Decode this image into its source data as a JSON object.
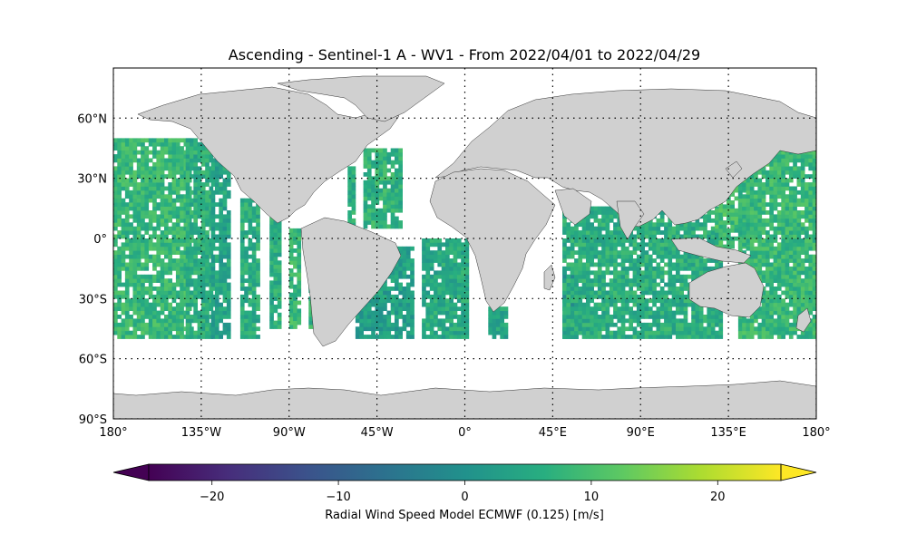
{
  "title": "Ascending - Sentinel-1 A - WV1 - From 2022/04/01 to 2022/04/29",
  "map": {
    "projection": "equirectangular",
    "lon_range": [
      -180,
      180
    ],
    "lat_range": [
      -90,
      85
    ],
    "gridlines": "dotted",
    "land_color": "#d0d0d0",
    "ocean_color": "#ffffff",
    "lon_ticks": [
      {
        "value": -180,
        "label": "180°"
      },
      {
        "value": -135,
        "label": "135°W"
      },
      {
        "value": -90,
        "label": "90°W"
      },
      {
        "value": -45,
        "label": "45°W"
      },
      {
        "value": 0,
        "label": "0°"
      },
      {
        "value": 45,
        "label": "45°E"
      },
      {
        "value": 90,
        "label": "90°E"
      },
      {
        "value": 135,
        "label": "135°E"
      },
      {
        "value": 180,
        "label": "180°"
      }
    ],
    "lat_ticks": [
      {
        "value": 60,
        "label": "60°N"
      },
      {
        "value": 30,
        "label": "30°N"
      },
      {
        "value": 0,
        "label": "0°"
      },
      {
        "value": -30,
        "label": "30°S"
      },
      {
        "value": -60,
        "label": "60°S"
      },
      {
        "value": -90,
        "label": "90°S"
      }
    ]
  },
  "chart_data": {
    "type": "heatmap",
    "title": "Ascending - Sentinel-1 A - WV1 - From 2022/04/01 to 2022/04/29",
    "variable": "Radial Wind Speed Model ECMWF (0.125) [m/s]",
    "colormap": "viridis",
    "extend": "both",
    "vmin": -25,
    "vmax": 25,
    "data_lat_range": [
      -50,
      50
    ],
    "cell_size_deg": [
      2,
      2
    ],
    "typical_value_range": [
      -2,
      14
    ],
    "swaths": [
      {
        "lon": [
          -180,
          -140
        ],
        "lat": [
          -50,
          50
        ],
        "value": 8
      },
      {
        "lon": [
          -143,
          -130
        ],
        "lat": [
          -50,
          50
        ],
        "value": 6
      },
      {
        "lon": [
          -130,
          -120
        ],
        "lat": [
          -50,
          45
        ],
        "value": 4
      },
      {
        "lon": [
          -115,
          -106
        ],
        "lat": [
          -50,
          20
        ],
        "value": 6
      },
      {
        "lon": [
          -100,
          -94
        ],
        "lat": [
          -45,
          10
        ],
        "value": 6
      },
      {
        "lon": [
          -90,
          -85
        ],
        "lat": [
          -45,
          5
        ],
        "value": 8
      },
      {
        "lon": [
          -80,
          -76
        ],
        "lat": [
          -45,
          0
        ],
        "value": 7
      },
      {
        "lon": [
          -60,
          -56
        ],
        "lat": [
          0,
          35
        ],
        "value": 6
      },
      {
        "lon": [
          -52,
          -32
        ],
        "lat": [
          5,
          45
        ],
        "value": 7
      },
      {
        "lon": [
          -56,
          -26
        ],
        "lat": [
          -50,
          -5
        ],
        "value": 3
      },
      {
        "lon": [
          -22,
          2
        ],
        "lat": [
          -50,
          0
        ],
        "value": 5
      },
      {
        "lon": [
          12,
          22
        ],
        "lat": [
          -50,
          -35
        ],
        "value": 4
      },
      {
        "lon": [
          50,
          58
        ],
        "lat": [
          -50,
          -15
        ],
        "value": 2
      },
      {
        "lon": [
          50,
          132
        ],
        "lat": [
          -50,
          15
        ],
        "value": 6
      },
      {
        "lon": [
          128,
          145
        ],
        "lat": [
          -5,
          30
        ],
        "value": 9
      },
      {
        "lon": [
          140,
          180
        ],
        "lat": [
          -50,
          50
        ],
        "value": 8
      }
    ]
  },
  "colorbar": {
    "label": "Radial Wind Speed Model ECMWF (0.125) [m/s]",
    "ticks": [
      {
        "value": -20,
        "label": "−20"
      },
      {
        "value": -10,
        "label": "−10"
      },
      {
        "value": 0,
        "label": "0"
      },
      {
        "value": 10,
        "label": "10"
      },
      {
        "value": 20,
        "label": "20"
      }
    ],
    "range": [
      -25,
      25
    ]
  }
}
